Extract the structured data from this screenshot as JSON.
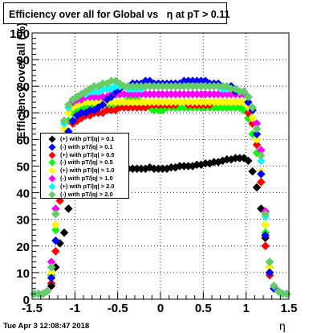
{
  "title": "Efficiency over all for Global vs   η at pT > 0.11",
  "timestamp": "Tue Apr  3 12:08:47 2018",
  "chart_data": {
    "type": "scatter",
    "title": "Efficiency over all for Global vs   η at pT > 0.11",
    "xlabel": "η",
    "ylabel": "Efficiency over all (%)",
    "xlim": [
      -1.5,
      1.5
    ],
    "ylim": [
      0,
      100
    ],
    "x_ticks": [
      "-1.5",
      "-1",
      "-0.5",
      "0",
      "0.5",
      "1",
      "1.5"
    ],
    "y_ticks": [
      "0",
      "10",
      "20",
      "30",
      "40",
      "50",
      "60",
      "70",
      "80",
      "90",
      "100"
    ],
    "grid": true,
    "legend_position": "middle-left",
    "x": [
      -1.475,
      -1.425,
      -1.375,
      -1.325,
      -1.275,
      -1.225,
      -1.175,
      -1.125,
      -1.075,
      -1.025,
      -0.975,
      -0.925,
      -0.875,
      -0.825,
      -0.775,
      -0.725,
      -0.675,
      -0.625,
      -0.575,
      -0.525,
      -0.475,
      -0.425,
      -0.375,
      -0.325,
      -0.275,
      -0.225,
      -0.175,
      -0.125,
      -0.075,
      -0.025,
      0.025,
      0.075,
      0.125,
      0.175,
      0.225,
      0.275,
      0.325,
      0.375,
      0.425,
      0.475,
      0.525,
      0.575,
      0.625,
      0.675,
      0.725,
      0.775,
      0.825,
      0.875,
      0.925,
      0.975,
      1.025,
      1.075,
      1.125,
      1.175,
      1.225,
      1.275,
      1.325,
      1.375,
      1.425,
      1.475
    ],
    "series": [
      {
        "name": "(+) with pT/|q| > 0.1",
        "color": "#000000",
        "marker": "diamond",
        "values": [
          2,
          2,
          2,
          3,
          5,
          12,
          21,
          25,
          34,
          42,
          46,
          48,
          49,
          49.5,
          50,
          50,
          50,
          49.5,
          49.5,
          49.5,
          49.5,
          49,
          49,
          49,
          49,
          49,
          49,
          49.5,
          49,
          49,
          49,
          49,
          49.5,
          49.5,
          50,
          50,
          50,
          50,
          50.5,
          50.5,
          51,
          51,
          51.5,
          51.5,
          52,
          52.5,
          52.5,
          53,
          53,
          53,
          52,
          48,
          42,
          34,
          23,
          10,
          4,
          3,
          2,
          2
        ]
      },
      {
        "name": "(-) with pT/|q| > 0.1",
        "color": "#0000ff",
        "marker": "diamond",
        "values": [
          2,
          2,
          2,
          3,
          8,
          22,
          42,
          55,
          63,
          67,
          69,
          70,
          70,
          71,
          71,
          72,
          73,
          75,
          76,
          78,
          79,
          80,
          80,
          81,
          81,
          81,
          82,
          82,
          81,
          81,
          81,
          81,
          81,
          81,
          81,
          82,
          82,
          82,
          82,
          82,
          82,
          81,
          81,
          81,
          80,
          80,
          80,
          78,
          78,
          78,
          74,
          71,
          62,
          47,
          24,
          10,
          4,
          3,
          2,
          2
        ]
      },
      {
        "name": "(+) with pT/|q| > 0.5",
        "color": "#ff0000",
        "marker": "diamond",
        "values": [
          2,
          2,
          2,
          3,
          6,
          18,
          37,
          52,
          62,
          66,
          67,
          68,
          69,
          69,
          70,
          70,
          70,
          71,
          71,
          71,
          72,
          72,
          72,
          72,
          72,
          72,
          72,
          73,
          73,
          73,
          73,
          73,
          73,
          73,
          74,
          74,
          73,
          73,
          73,
          73,
          73,
          73,
          74,
          74,
          74,
          74,
          74,
          74,
          74,
          74,
          70,
          66,
          58,
          44,
          20,
          9,
          4,
          3,
          2,
          2
        ]
      },
      {
        "name": "(-) with pT/|q| > 0.5",
        "color": "#00ff00",
        "marker": "diamond",
        "values": [
          2,
          2,
          2,
          3,
          9,
          26,
          48,
          60,
          67,
          70,
          71,
          71,
          72,
          72,
          73,
          73,
          73,
          73,
          73,
          73,
          73,
          74,
          75,
          76,
          75,
          74,
          72,
          72,
          71,
          71,
          71,
          72,
          72,
          72,
          72,
          72,
          72,
          72,
          72,
          72,
          72,
          72,
          72,
          72,
          72,
          72,
          72,
          72,
          72,
          71,
          68,
          62,
          55,
          44,
          25,
          12,
          5,
          3,
          2,
          2
        ]
      },
      {
        "name": "(+) with pT/|q| > 1.0",
        "color": "#ffff00",
        "marker": "diamond",
        "values": [
          2,
          2,
          2,
          3,
          10,
          28,
          52,
          64,
          70,
          72,
          73,
          74,
          74,
          74,
          74,
          74,
          74,
          74,
          74,
          74,
          74,
          74,
          74,
          74,
          74,
          74,
          74,
          74,
          74,
          74,
          74,
          74,
          74,
          74,
          74,
          74,
          74,
          74,
          74,
          74,
          74,
          74,
          74,
          74,
          74,
          74,
          74,
          74,
          74,
          74,
          72,
          68,
          60,
          48,
          28,
          12,
          5,
          3,
          2,
          2
        ]
      },
      {
        "name": "(-) with pT/|q| > 1.0",
        "color": "#ff00ff",
        "marker": "diamond",
        "values": [
          2,
          2,
          2,
          3,
          14,
          34,
          56,
          67,
          72,
          74,
          75,
          75,
          76,
          76,
          76,
          76,
          76,
          76,
          77,
          77,
          77,
          77,
          77,
          77,
          77,
          77,
          77,
          77,
          77,
          77,
          77,
          77,
          77,
          77,
          77,
          77,
          77,
          77,
          77,
          77,
          77,
          77,
          77,
          77,
          77,
          77,
          77,
          77,
          77,
          77,
          76,
          72,
          66,
          56,
          33,
          14,
          5,
          3,
          2,
          2
        ]
      },
      {
        "name": "(+) with pT/|q| > 2.0",
        "color": "#00ffff",
        "marker": "diamond",
        "values": [
          2,
          2,
          2,
          3,
          12,
          32,
          55,
          66,
          72,
          75,
          76,
          77,
          77,
          78,
          78,
          78,
          79,
          79,
          79,
          80,
          80,
          80,
          79,
          79,
          79,
          79,
          80,
          80,
          80,
          80,
          80,
          80,
          80,
          80,
          80,
          80,
          80,
          80,
          80,
          80,
          80,
          80,
          80,
          80,
          79,
          79,
          79,
          79,
          78,
          78,
          76,
          72,
          64,
          52,
          31,
          14,
          5,
          3,
          2,
          2
        ]
      },
      {
        "name": "(-) with pT/|q| > 2.0",
        "color": "#66cc66",
        "marker": "diamond",
        "values": [
          2,
          2,
          2,
          3,
          12,
          32,
          56,
          67,
          73,
          75,
          76,
          77,
          78,
          79,
          80,
          80,
          81,
          81,
          82,
          82,
          81,
          80,
          80,
          80,
          80,
          80,
          80,
          80,
          80,
          80,
          80,
          80,
          80,
          80,
          80,
          80,
          80,
          80,
          80,
          80,
          80,
          80,
          80,
          80,
          80,
          80,
          79,
          79,
          78,
          78,
          76,
          72,
          64,
          54,
          32,
          14,
          5,
          3,
          2,
          2
        ]
      }
    ]
  }
}
